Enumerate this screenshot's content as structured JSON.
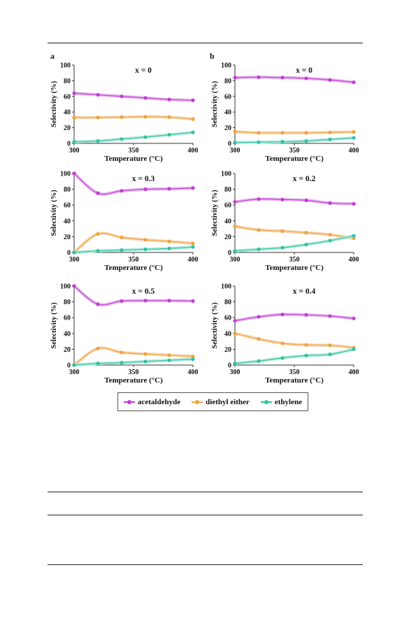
{
  "colors": {
    "acetaldehyde": "#c43cd6",
    "diethyl_ether": "#f0a23c",
    "ethylene": "#2ec3a1",
    "acetaldehyde_fill": "#e7b6ee",
    "diethyl_ether_fill": "#f7d9b4",
    "ethylene_fill": "#b6ecde"
  },
  "legend": {
    "acetaldehyde": "acetaldehyde",
    "diethyl_ether": "diethyl either",
    "ethylene": "ethylene"
  },
  "chart_data": [
    {
      "type": "line",
      "panel_label": "a",
      "title": "x = 0",
      "xlabel": "Temperature (°C)",
      "ylabel": "Selectivity (%)",
      "xlim": [
        300,
        400
      ],
      "ylim": [
        0,
        100
      ],
      "xticks": [
        "300",
        "350",
        "400"
      ],
      "yticks": [
        "0",
        "20",
        "40",
        "60",
        "80",
        "100"
      ],
      "x": [
        300,
        320,
        340,
        360,
        380,
        400
      ],
      "series": [
        {
          "name": "acetaldehyde",
          "values": [
            64,
            62,
            60,
            58,
            56,
            55
          ]
        },
        {
          "name": "diethyl either",
          "values": [
            33,
            33,
            33.5,
            34,
            33.5,
            31
          ]
        },
        {
          "name": "ethylene",
          "values": [
            2,
            3,
            5.5,
            8,
            11,
            14
          ]
        }
      ]
    },
    {
      "type": "line",
      "panel_label": "b",
      "title": "x = 0",
      "xlabel": "Temperature (°C)",
      "ylabel": "Selectivity (%)",
      "xlim": [
        300,
        400
      ],
      "ylim": [
        0,
        100
      ],
      "xticks": [
        "300",
        "350",
        "400"
      ],
      "yticks": [
        "0",
        "20",
        "40",
        "60",
        "80",
        "100"
      ],
      "x": [
        300,
        320,
        340,
        360,
        380,
        400
      ],
      "series": [
        {
          "name": "acetaldehyde",
          "values": [
            84,
            84.5,
            84,
            83,
            81,
            78
          ]
        },
        {
          "name": "diethyl either",
          "values": [
            15,
            13.5,
            13.5,
            13.5,
            14,
            14.5
          ]
        },
        {
          "name": "ethylene",
          "values": [
            1,
            1.5,
            2,
            3,
            5,
            7
          ]
        }
      ]
    },
    {
      "type": "line",
      "panel_label": "",
      "title": "x = 0.3",
      "xlabel": "Temperature (°C)",
      "ylabel": "Selectivity (%)",
      "xlim": [
        300,
        400
      ],
      "ylim": [
        0,
        100
      ],
      "xticks": [
        "300",
        "350",
        "400"
      ],
      "yticks": [
        "0",
        "20",
        "40",
        "60",
        "80",
        "100"
      ],
      "x": [
        300,
        320,
        340,
        360,
        380,
        400
      ],
      "series": [
        {
          "name": "acetaldehyde",
          "values": [
            100,
            75,
            78,
            80,
            80.5,
            81.5
          ]
        },
        {
          "name": "diethyl either",
          "values": [
            0,
            23.5,
            19,
            16,
            14,
            11.5
          ]
        },
        {
          "name": "ethylene",
          "values": [
            0,
            2,
            3,
            4,
            5,
            7
          ]
        }
      ]
    },
    {
      "type": "line",
      "panel_label": "",
      "title": "x = 0.2",
      "xlabel": "Temperature (°C)",
      "ylabel": "Selectivity (%)",
      "xlim": [
        300,
        400
      ],
      "ylim": [
        0,
        100
      ],
      "xticks": [
        "300",
        "350",
        "400"
      ],
      "yticks": [
        "0",
        "20",
        "40",
        "60",
        "80",
        "100"
      ],
      "x": [
        300,
        320,
        340,
        360,
        380,
        400
      ],
      "series": [
        {
          "name": "acetaldehyde",
          "values": [
            64,
            67.5,
            67,
            66,
            62.5,
            61.5
          ]
        },
        {
          "name": "diethyl either",
          "values": [
            33,
            28.5,
            27,
            25,
            22.5,
            18
          ]
        },
        {
          "name": "ethylene",
          "values": [
            2,
            4,
            6,
            10,
            15,
            21
          ]
        }
      ]
    },
    {
      "type": "line",
      "panel_label": "",
      "title": "x = 0.5",
      "xlabel": "Temperature (°C)",
      "ylabel": "Selectivity (%)",
      "xlim": [
        300,
        400
      ],
      "ylim": [
        0,
        100
      ],
      "xticks": [
        "300",
        "350",
        "400"
      ],
      "yticks": [
        "0",
        "20",
        "40",
        "60",
        "80",
        "100"
      ],
      "x": [
        300,
        320,
        340,
        360,
        380,
        400
      ],
      "series": [
        {
          "name": "acetaldehyde",
          "values": [
            100,
            77,
            81,
            81.5,
            81.5,
            81
          ]
        },
        {
          "name": "diethyl either",
          "values": [
            0,
            21,
            16,
            14,
            12.5,
            11
          ]
        },
        {
          "name": "ethylene",
          "values": [
            0,
            2,
            3,
            4.5,
            6,
            7.5
          ]
        }
      ]
    },
    {
      "type": "line",
      "panel_label": "",
      "title": "x = 0.4",
      "xlabel": "Temperature (°C)",
      "ylabel": "Selectivity (%)",
      "xlim": [
        300,
        400
      ],
      "ylim": [
        0,
        100
      ],
      "xticks": [
        "300",
        "350",
        "400"
      ],
      "yticks": [
        "0",
        "20",
        "40",
        "60",
        "80",
        "100"
      ],
      "x": [
        300,
        320,
        340,
        360,
        380,
        400
      ],
      "series": [
        {
          "name": "acetaldehyde",
          "values": [
            56,
            61,
            64,
            63.5,
            62,
            59
          ]
        },
        {
          "name": "diethyl either",
          "values": [
            40,
            33,
            27.5,
            25.5,
            25,
            22
          ]
        },
        {
          "name": "ethylene",
          "values": [
            2,
            5,
            9,
            12,
            13.5,
            20
          ]
        }
      ]
    }
  ]
}
